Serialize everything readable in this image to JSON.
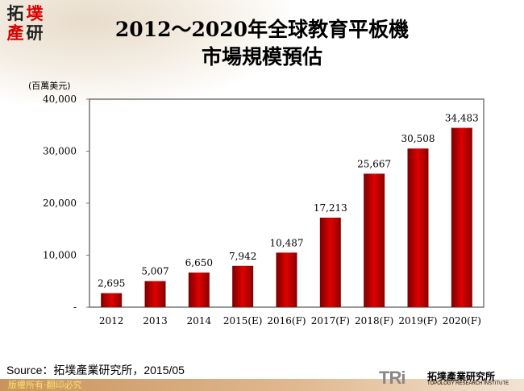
{
  "logo": {
    "chars": [
      "拓",
      "墣",
      "產",
      "研"
    ]
  },
  "title": {
    "line1": "2012～2020年全球教育平板機",
    "line2": "市場規模預估"
  },
  "chart_data": {
    "type": "bar",
    "title": "2012～2020年全球教育平板機 市場規模預估",
    "ylabel": "(百萬美元)",
    "ylim": [
      0,
      40000
    ],
    "yticks": [
      "-",
      "10,000",
      "20,000",
      "30,000",
      "40,000"
    ],
    "grid": false,
    "categories": [
      "2012",
      "2013",
      "2014",
      "2015(E)",
      "2016(F)",
      "2017(F)",
      "2018(F)",
      "2019(F)",
      "2020(F)"
    ],
    "values": [
      2695,
      5007,
      6650,
      7942,
      10487,
      17213,
      25667,
      30508,
      34483
    ],
    "data_labels": [
      "2,695",
      "5,007",
      "6,650",
      "7,942",
      "10,487",
      "17,213",
      "25,667",
      "30,508",
      "34,483"
    ],
    "bar_color": "#c00000"
  },
  "source": "Source：拓墣產業研究所，2015/05",
  "footer": {
    "copyright": "版權所有‧翻印必究",
    "brand_logo": "TRi",
    "brand_cn": "拓墣產業研究所",
    "brand_en": "TOPOLOGY RESEARCH INSTITUTE"
  }
}
